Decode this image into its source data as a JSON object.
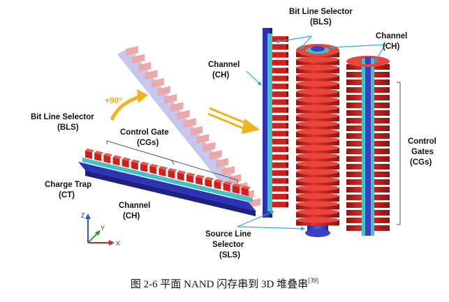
{
  "labels": {
    "bls_right": [
      "Bit Line Selector",
      "(BLS)"
    ],
    "channel_mid": [
      "Channel",
      "(CH)"
    ],
    "channel_right": [
      "Channel",
      "(CH)"
    ],
    "rotate": "+90°",
    "bls_left": [
      "Bit Line Selector",
      "(BLS)"
    ],
    "control_gate": [
      "Control Gate",
      "(CGs)"
    ],
    "charge_trap": [
      "Charge Trap",
      "(CT)"
    ],
    "channel_bottom": [
      "Channel",
      "(CH)"
    ],
    "control_gates_right": [
      "Control",
      "Gates",
      "(CGs)"
    ],
    "sls": [
      "Source Line",
      "Selector",
      "(SLS)"
    ]
  },
  "axes": {
    "z": "Z",
    "y": "Y",
    "x": "X"
  },
  "caption": {
    "text": "图 2-6  平面 NAND 闪存串到 3D 堆叠串",
    "ref": "[39]"
  },
  "colors": {
    "gate_red": "#d0201c",
    "gate_dark": "#8e1410",
    "channel_blue": "#3b3fc4",
    "trap_cyan": "#40c3c8",
    "arrow_yellow": "#f2b21b",
    "leader_cyan": "#29a9e0"
  }
}
